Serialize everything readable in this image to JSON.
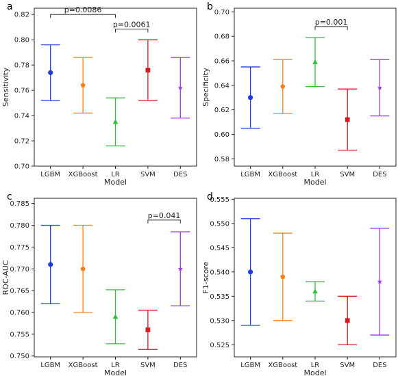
{
  "models": [
    "LGBM",
    "XGBoost",
    "LR",
    "SVM",
    "DES"
  ],
  "colors": {
    "LGBM": "#1f3fe0",
    "XGBoost": "#f28220",
    "LR": "#2fbf3a",
    "SVM": "#d61a24",
    "DES": "#9b3bd6"
  },
  "markers": {
    "LGBM": "circle",
    "XGBoost": "pentagon",
    "LR": "triangle",
    "SVM": "square",
    "DES": "star"
  },
  "chart_data": [
    {
      "type": "errorbar",
      "panel": "a",
      "xlabel": "Model",
      "ylabel": "Sensitivity",
      "categories": [
        "LGBM",
        "XGBoost",
        "LR",
        "SVM",
        "DES"
      ],
      "ylim": [
        0.7,
        0.825
      ],
      "yticks": [
        "0.70",
        "0.72",
        "0.74",
        "0.76",
        "0.78",
        "0.80",
        "0.82"
      ],
      "ytick_values": [
        0.7,
        0.72,
        0.74,
        0.76,
        0.78,
        0.8,
        0.82
      ],
      "points": [
        {
          "model": "LGBM",
          "value": 0.774,
          "low": 0.752,
          "high": 0.796
        },
        {
          "model": "XGBoost",
          "value": 0.764,
          "low": 0.742,
          "high": 0.786
        },
        {
          "model": "LR",
          "value": 0.735,
          "low": 0.716,
          "high": 0.754
        },
        {
          "model": "SVM",
          "value": 0.776,
          "low": 0.752,
          "high": 0.8
        },
        {
          "model": "DES",
          "value": 0.762,
          "low": 0.738,
          "high": 0.786
        }
      ],
      "annotations": [
        {
          "text": "p=0.0086",
          "from": "LGBM",
          "to": "LR",
          "y": 0.82
        },
        {
          "text": "p=0.0061",
          "from": "LR",
          "to": "SVM",
          "y": 0.8085
        }
      ]
    },
    {
      "type": "errorbar",
      "panel": "b",
      "xlabel": "Model",
      "ylabel": "Specificity",
      "categories": [
        "LGBM",
        "XGBoost",
        "LR",
        "SVM",
        "DES"
      ],
      "ylim": [
        0.574,
        0.703
      ],
      "yticks": [
        "0.58",
        "0.60",
        "0.62",
        "0.64",
        "0.66",
        "0.68",
        "0.70"
      ],
      "ytick_values": [
        0.58,
        0.6,
        0.62,
        0.64,
        0.66,
        0.68,
        0.7
      ],
      "points": [
        {
          "model": "LGBM",
          "value": 0.63,
          "low": 0.605,
          "high": 0.655
        },
        {
          "model": "XGBoost",
          "value": 0.639,
          "low": 0.617,
          "high": 0.661
        },
        {
          "model": "LR",
          "value": 0.659,
          "low": 0.639,
          "high": 0.679
        },
        {
          "model": "SVM",
          "value": 0.612,
          "low": 0.587,
          "high": 0.637
        },
        {
          "model": "DES",
          "value": 0.638,
          "low": 0.615,
          "high": 0.661
        }
      ],
      "annotations": [
        {
          "text": "p=0.001",
          "from": "LR",
          "to": "SVM",
          "y": 0.688
        }
      ]
    },
    {
      "type": "errorbar",
      "panel": "c",
      "xlabel": "Model",
      "ylabel": "ROC-AUC",
      "categories": [
        "LGBM",
        "XGBoost",
        "LR",
        "SVM",
        "DES"
      ],
      "ylim": [
        0.7498,
        0.7862
      ],
      "yticks": [
        "0.750",
        "0.755",
        "0.760",
        "0.765",
        "0.770",
        "0.775",
        "0.780",
        "0.785"
      ],
      "ytick_values": [
        0.75,
        0.755,
        0.76,
        0.765,
        0.77,
        0.775,
        0.78,
        0.785
      ],
      "points": [
        {
          "model": "LGBM",
          "value": 0.771,
          "low": 0.762,
          "high": 0.78
        },
        {
          "model": "XGBoost",
          "value": 0.77,
          "low": 0.76,
          "high": 0.78
        },
        {
          "model": "LR",
          "value": 0.759,
          "low": 0.7528,
          "high": 0.7652
        },
        {
          "model": "SVM",
          "value": 0.756,
          "low": 0.7515,
          "high": 0.7605
        },
        {
          "model": "DES",
          "value": 0.77,
          "low": 0.7615,
          "high": 0.7785
        }
      ],
      "annotations": [
        {
          "text": "p=0.041",
          "from": "SVM",
          "to": "DES",
          "y": 0.7812
        }
      ]
    },
    {
      "type": "errorbar",
      "panel": "d",
      "xlabel": "Model",
      "ylabel": "F1-score",
      "categories": [
        "LGBM",
        "XGBoost",
        "LR",
        "SVM",
        "DES"
      ],
      "ylim": [
        0.5225,
        0.5552
      ],
      "yticks": [
        "0.525",
        "0.530",
        "0.535",
        "0.540",
        "0.545",
        "0.550",
        "0.555"
      ],
      "ytick_values": [
        0.525,
        0.53,
        0.535,
        0.54,
        0.545,
        0.55,
        0.555
      ],
      "points": [
        {
          "model": "LGBM",
          "value": 0.54,
          "low": 0.529,
          "high": 0.551
        },
        {
          "model": "XGBoost",
          "value": 0.539,
          "low": 0.53,
          "high": 0.548
        },
        {
          "model": "LR",
          "value": 0.536,
          "low": 0.534,
          "high": 0.538
        },
        {
          "model": "SVM",
          "value": 0.53,
          "low": 0.525,
          "high": 0.535
        },
        {
          "model": "DES",
          "value": 0.538,
          "low": 0.527,
          "high": 0.549
        }
      ],
      "annotations": []
    }
  ]
}
